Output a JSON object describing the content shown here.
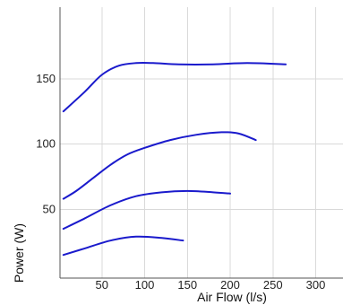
{
  "chart_data": {
    "type": "line",
    "title": "",
    "xlabel": "Air Flow (l/s)",
    "ylabel": "Power (W)",
    "xlim": [
      0,
      330
    ],
    "ylim": [
      0,
      200
    ],
    "x_ticks": [
      50,
      100,
      150,
      200,
      250,
      300
    ],
    "y_ticks": [
      50,
      100,
      150
    ],
    "grid": true,
    "legend": "none",
    "series_color": "#1a1acc",
    "series": [
      {
        "x": [
          5,
          30,
          50,
          70,
          90,
          110,
          140,
          180,
          220,
          265
        ],
        "y": [
          125,
          140,
          153,
          160,
          162,
          162,
          161,
          161,
          162,
          161
        ]
      },
      {
        "x": [
          5,
          20,
          40,
          60,
          80,
          100,
          130,
          160,
          190,
          210,
          230
        ],
        "y": [
          58,
          64,
          74,
          84,
          92,
          97,
          103,
          107,
          109,
          108,
          103
        ]
      },
      {
        "x": [
          5,
          30,
          60,
          90,
          120,
          150,
          180,
          200
        ],
        "y": [
          35,
          43,
          53,
          60,
          63,
          64,
          63,
          62
        ]
      },
      {
        "x": [
          5,
          30,
          60,
          90,
          120,
          145
        ],
        "y": [
          15,
          20,
          26,
          29,
          28,
          26
        ]
      }
    ]
  }
}
